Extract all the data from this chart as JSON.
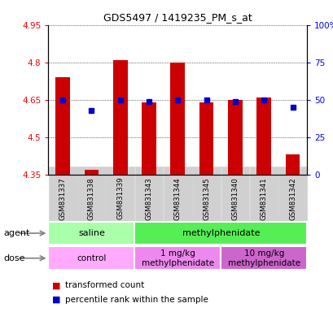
{
  "title": "GDS5497 / 1419235_PM_s_at",
  "samples": [
    "GSM831337",
    "GSM831338",
    "GSM831339",
    "GSM831343",
    "GSM831344",
    "GSM831345",
    "GSM831340",
    "GSM831341",
    "GSM831342"
  ],
  "red_values": [
    4.74,
    4.37,
    4.81,
    4.64,
    4.8,
    4.64,
    4.65,
    4.66,
    4.43
  ],
  "blue_values": [
    50,
    43,
    50,
    49,
    50,
    50,
    49,
    50,
    45
  ],
  "ylim_left": [
    4.35,
    4.95
  ],
  "ylim_right": [
    0,
    100
  ],
  "yticks_left": [
    4.35,
    4.5,
    4.65,
    4.8,
    4.95
  ],
  "yticks_right": [
    0,
    25,
    50,
    75,
    100
  ],
  "ytick_labels_left": [
    "4.35",
    "4.5",
    "4.65",
    "4.8",
    "4.95"
  ],
  "ytick_labels_right": [
    "0",
    "25",
    "50",
    "75",
    "100%"
  ],
  "bar_bottom": 4.35,
  "bar_color": "#cc0000",
  "dot_color": "#0000cc",
  "agent_saline_label": "saline",
  "agent_methyl_label": "methylphenidate",
  "dose_control_label": "control",
  "dose_1mg_label": "1 mg/kg\nmethylphenidate",
  "dose_10mg_label": "10 mg/kg\nmethylphenidate",
  "legend_red_label": "transformed count",
  "legend_blue_label": "percentile rank within the sample",
  "agent_label": "agent",
  "dose_label": "dose",
  "saline_color": "#aaffaa",
  "methyl_color": "#55ee55",
  "control_color": "#ffaaff",
  "dose1_color": "#ee88ee",
  "dose10_color": "#cc66cc",
  "tick_bg": "#d0d0d0",
  "bar_width": 0.5,
  "dot_size": 14
}
